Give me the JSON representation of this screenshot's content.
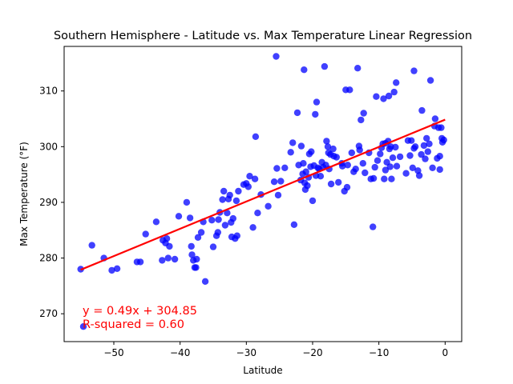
{
  "chart_data": {
    "type": "scatter",
    "title": "Southern Hemisphere - Latitude vs. Max Temperature Linear Regression",
    "xlabel": "Latitude",
    "ylabel": "Max Temperature (°F)",
    "xlim": [
      -57.5,
      2.5
    ],
    "ylim": [
      265,
      318
    ],
    "xticks": [
      -50,
      -40,
      -30,
      -20,
      -10,
      0
    ],
    "yticks": [
      270,
      280,
      290,
      300,
      310
    ],
    "grid": false,
    "point_color": "#0000ff",
    "line_color": "#ff0000",
    "regression": {
      "slope": 0.49,
      "intercept": 304.85,
      "x_range": [
        -55.0,
        0.0
      ]
    },
    "annotation": {
      "equation": "y = 0.49x + 304.85",
      "r_squared": "R-squared = 0.60"
    },
    "points": [
      [
        -55.0,
        278.0
      ],
      [
        -54.6,
        267.7
      ],
      [
        -53.3,
        282.3
      ],
      [
        -51.5,
        280.0
      ],
      [
        -50.3,
        277.8
      ],
      [
        -49.5,
        278.1
      ],
      [
        -46.5,
        279.3
      ],
      [
        -46.0,
        279.3
      ],
      [
        -45.2,
        284.3
      ],
      [
        -43.6,
        286.5
      ],
      [
        -42.7,
        279.6
      ],
      [
        -42.6,
        283.2
      ],
      [
        -42.2,
        282.7
      ],
      [
        -42.0,
        283.5
      ],
      [
        -41.8,
        280.0
      ],
      [
        -41.6,
        282.1
      ],
      [
        -40.8,
        279.8
      ],
      [
        -40.2,
        287.5
      ],
      [
        -39.0,
        290.0
      ],
      [
        -38.5,
        287.2
      ],
      [
        -38.3,
        282.1
      ],
      [
        -38.2,
        280.6
      ],
      [
        -38.0,
        279.6
      ],
      [
        -37.8,
        278.3
      ],
      [
        -37.6,
        278.3
      ],
      [
        -37.5,
        279.8
      ],
      [
        -37.3,
        283.7
      ],
      [
        -36.8,
        284.6
      ],
      [
        -36.5,
        286.5
      ],
      [
        -36.2,
        275.8
      ],
      [
        -35.2,
        286.8
      ],
      [
        -35.0,
        282.0
      ],
      [
        -34.5,
        284.0
      ],
      [
        -34.3,
        284.6
      ],
      [
        -34.2,
        286.9
      ],
      [
        -34.0,
        288.2
      ],
      [
        -33.6,
        290.5
      ],
      [
        -33.4,
        292.0
      ],
      [
        -33.2,
        285.9
      ],
      [
        -32.9,
        288.1
      ],
      [
        -32.7,
        290.6
      ],
      [
        -32.5,
        291.3
      ],
      [
        -32.3,
        286.4
      ],
      [
        -32.2,
        283.8
      ],
      [
        -32.0,
        287.1
      ],
      [
        -31.7,
        283.5
      ],
      [
        -31.5,
        290.3
      ],
      [
        -31.4,
        284.0
      ],
      [
        -31.2,
        292.0
      ],
      [
        -30.4,
        293.2
      ],
      [
        -30.0,
        293.4
      ],
      [
        -29.7,
        292.8
      ],
      [
        -29.5,
        294.7
      ],
      [
        -29.0,
        285.5
      ],
      [
        -28.7,
        294.2
      ],
      [
        -28.6,
        301.8
      ],
      [
        -28.3,
        288.1
      ],
      [
        -27.8,
        291.4
      ],
      [
        -26.7,
        289.3
      ],
      [
        -25.8,
        293.7
      ],
      [
        -25.5,
        316.2
      ],
      [
        -25.4,
        296.1
      ],
      [
        -25.2,
        291.3
      ],
      [
        -24.8,
        293.8
      ],
      [
        -24.2,
        296.2
      ],
      [
        -23.3,
        299.0
      ],
      [
        -23.0,
        300.7
      ],
      [
        -22.8,
        286.0
      ],
      [
        -22.3,
        306.1
      ],
      [
        -22.1,
        296.7
      ],
      [
        -21.8,
        294.0
      ],
      [
        -21.7,
        300.1
      ],
      [
        -21.5,
        295.1
      ],
      [
        -21.4,
        297.0
      ],
      [
        -21.3,
        313.8
      ],
      [
        -21.2,
        293.5
      ],
      [
        -21.1,
        292.3
      ],
      [
        -21.0,
        295.5
      ],
      [
        -20.8,
        293.0
      ],
      [
        -20.6,
        294.5
      ],
      [
        -20.5,
        298.7
      ],
      [
        -20.3,
        296.4
      ],
      [
        -20.2,
        299.1
      ],
      [
        -20.0,
        290.3
      ],
      [
        -19.8,
        296.6
      ],
      [
        -19.6,
        305.8
      ],
      [
        -19.5,
        294.8
      ],
      [
        -19.4,
        308.0
      ],
      [
        -19.2,
        296.2
      ],
      [
        -19.0,
        296.0
      ],
      [
        -18.8,
        294.7
      ],
      [
        -18.6,
        297.2
      ],
      [
        -18.4,
        296.3
      ],
      [
        -18.2,
        314.4
      ],
      [
        -18.0,
        296.7
      ],
      [
        -17.9,
        301.0
      ],
      [
        -17.7,
        300.0
      ],
      [
        -17.6,
        298.9
      ],
      [
        -17.5,
        296.0
      ],
      [
        -17.3,
        298.6
      ],
      [
        -17.2,
        293.3
      ],
      [
        -16.9,
        299.6
      ],
      [
        -16.8,
        298.3
      ],
      [
        -16.4,
        298.1
      ],
      [
        -16.1,
        293.6
      ],
      [
        -15.6,
        297.0
      ],
      [
        -15.2,
        292.0
      ],
      [
        -15.0,
        310.2
      ],
      [
        -14.8,
        292.7
      ],
      [
        -14.7,
        296.7
      ],
      [
        -14.4,
        310.2
      ],
      [
        -14.1,
        298.9
      ],
      [
        -13.8,
        295.5
      ],
      [
        -13.5,
        296.0
      ],
      [
        -13.2,
        314.1
      ],
      [
        -13.0,
        300.1
      ],
      [
        -12.9,
        299.4
      ],
      [
        -12.7,
        304.8
      ],
      [
        -12.4,
        297.0
      ],
      [
        -12.3,
        306.0
      ],
      [
        -12.1,
        295.3
      ],
      [
        -11.5,
        298.9
      ],
      [
        -11.2,
        294.2
      ],
      [
        -10.9,
        285.6
      ],
      [
        -10.8,
        294.3
      ],
      [
        -10.6,
        296.3
      ],
      [
        -10.4,
        309.0
      ],
      [
        -10.2,
        297.5
      ],
      [
        -9.8,
        298.7
      ],
      [
        -9.6,
        299.8
      ],
      [
        -9.4,
        300.5
      ],
      [
        -9.3,
        308.6
      ],
      [
        -9.2,
        294.2
      ],
      [
        -9.0,
        295.8
      ],
      [
        -8.8,
        297.2
      ],
      [
        -8.6,
        301.0
      ],
      [
        -8.5,
        309.1
      ],
      [
        -8.4,
        299.6
      ],
      [
        -8.3,
        296.4
      ],
      [
        -8.2,
        300.0
      ],
      [
        -8.1,
        294.2
      ],
      [
        -7.9,
        298.0
      ],
      [
        -7.7,
        309.8
      ],
      [
        -7.5,
        299.9
      ],
      [
        -7.4,
        311.5
      ],
      [
        -7.3,
        296.5
      ],
      [
        -6.8,
        298.2
      ],
      [
        -5.9,
        295.2
      ],
      [
        -5.6,
        301.1
      ],
      [
        -5.3,
        298.4
      ],
      [
        -5.1,
        301.1
      ],
      [
        -4.9,
        296.2
      ],
      [
        -4.7,
        299.7
      ],
      [
        -4.5,
        300.0
      ],
      [
        -4.1,
        295.7
      ],
      [
        -3.9,
        294.8
      ],
      [
        -3.6,
        298.6
      ],
      [
        -3.5,
        306.5
      ],
      [
        -3.2,
        300.2
      ],
      [
        -3.0,
        297.8
      ],
      [
        -2.8,
        301.5
      ],
      [
        -2.6,
        299.1
      ],
      [
        -2.4,
        300.5
      ],
      [
        -2.2,
        311.9
      ],
      [
        -1.9,
        296.2
      ],
      [
        -1.5,
        305.0
      ],
      [
        -1.2,
        297.9
      ],
      [
        -1.0,
        303.4
      ],
      [
        -0.8,
        295.9
      ],
      [
        -0.6,
        303.4
      ],
      [
        -0.5,
        301.5
      ],
      [
        -0.4,
        300.8
      ],
      [
        -1.6,
        303.7
      ],
      [
        -4.7,
        313.6
      ],
      [
        -0.2,
        301.2
      ],
      [
        -0.8,
        298.3
      ],
      [
        -9.0,
        300.6
      ],
      [
        -15.5,
        296.5
      ]
    ]
  }
}
